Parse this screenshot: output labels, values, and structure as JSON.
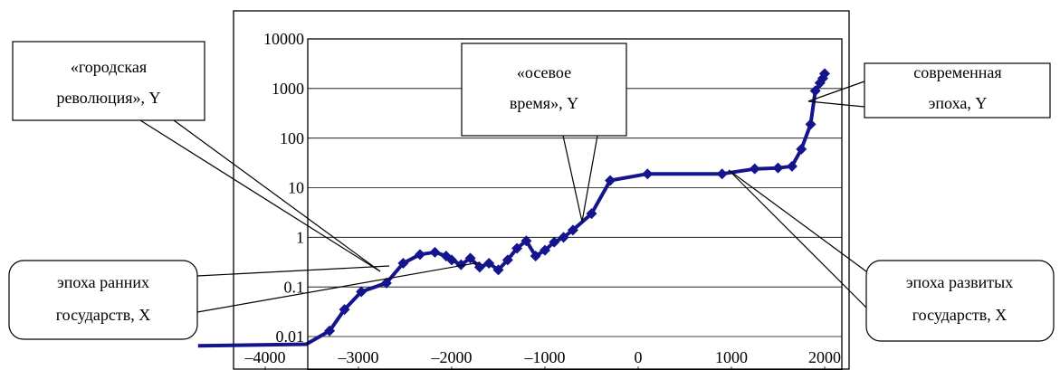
{
  "chart_data": {
    "type": "line",
    "log_y": true,
    "grid": true,
    "xlim": [
      -4800,
      2200
    ],
    "xticks": [
      {
        "value": -4000,
        "label": "–4000"
      },
      {
        "value": -3000,
        "label": "–3000"
      },
      {
        "value": -2000,
        "label": "–2000"
      },
      {
        "value": -1000,
        "label": "–1000"
      },
      0,
      1000,
      2000
    ],
    "ylim": [
      0.01,
      10000
    ],
    "yticks": [
      0.01,
      0.1,
      1,
      10,
      100,
      1000,
      10000
    ],
    "series": [
      {
        "color": "#14148c",
        "x": [
          -4720,
          -3560,
          -3310,
          -3150,
          -2970,
          -2700,
          -2520,
          -2340,
          -2180,
          -2060,
          -2000,
          -1900,
          -1800,
          -1700,
          -1600,
          -1500,
          -1400,
          -1300,
          -1200,
          -1100,
          -1000,
          -900,
          -800,
          -700,
          -500,
          -300,
          100,
          900,
          1250,
          1500,
          1650,
          1750,
          1850,
          1900,
          1950,
          1980,
          2000
        ],
        "values": [
          0.0065,
          0.007,
          0.013,
          0.035,
          0.08,
          0.12,
          0.3,
          0.45,
          0.5,
          0.42,
          0.35,
          0.28,
          0.38,
          0.25,
          0.3,
          0.22,
          0.35,
          0.6,
          0.85,
          0.42,
          0.55,
          0.8,
          1,
          1.4,
          3,
          14,
          19,
          19,
          24,
          25,
          27,
          60,
          190,
          900,
          1300,
          1600,
          2000
        ]
      }
    ],
    "annotations": [
      {
        "lines": [
          "«городская",
          "революция», Y"
        ]
      },
      {
        "lines": [
          "«осевое",
          "время», Y"
        ]
      },
      {
        "lines": [
          "современная",
          "эпоха, Y"
        ]
      },
      {
        "lines": [
          "эпоха ранних",
          "государств, X"
        ]
      },
      {
        "lines": [
          "эпоха развитых",
          "государств, X"
        ]
      }
    ]
  }
}
